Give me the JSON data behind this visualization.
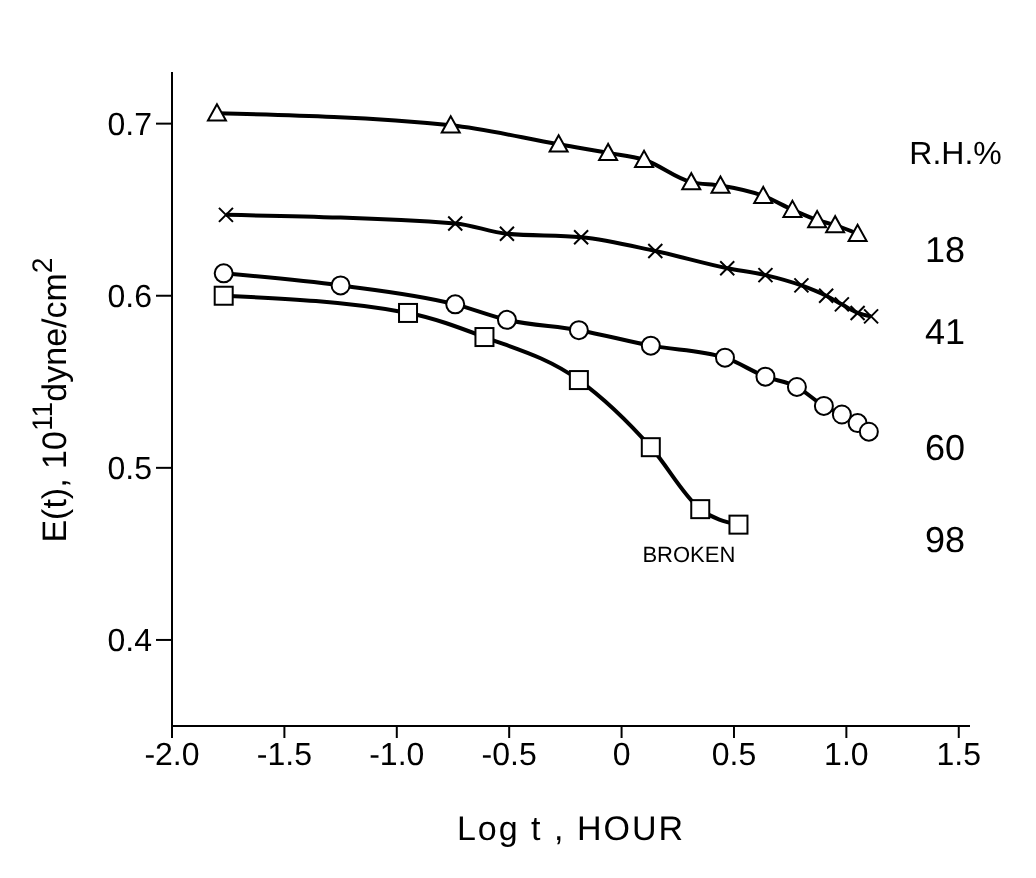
{
  "chart_data": {
    "type": "line",
    "xlabel": "Log t , HOUR",
    "ylabel": "E(t), 10$^{11}$dyne/cm$^{2}$",
    "legend_title": "R.H.%",
    "legend": "right",
    "xlim": [
      -2.0,
      1.55
    ],
    "xticks": [
      {
        "value": -2,
        "label": "-2.0"
      },
      {
        "value": -1.5,
        "label": "-1.5"
      },
      {
        "value": -1,
        "label": "-1.0"
      },
      {
        "value": -0.5,
        "label": "-0.5"
      },
      {
        "value": 0,
        "label": "0"
      },
      {
        "value": 0.5,
        "label": "0.5"
      },
      {
        "value": 1,
        "label": "1.0"
      },
      {
        "value": 1.5,
        "label": "1.5"
      }
    ],
    "ylim": [
      0.35,
      0.73
    ],
    "yticks": [
      0.4,
      0.5,
      0.6,
      0.7
    ],
    "series": [
      {
        "name": "18",
        "color": "#000000",
        "marker": "triangle",
        "x": [
          -1.8,
          -0.76,
          -0.28,
          -0.06,
          0.1,
          0.31,
          0.44,
          0.63,
          0.76,
          0.87,
          0.95,
          1.05
        ],
        "values": [
          0.706,
          0.699,
          0.688,
          0.683,
          0.679,
          0.666,
          0.664,
          0.658,
          0.65,
          0.644,
          0.641,
          0.636
        ]
      },
      {
        "name": "41",
        "color": "#000000",
        "marker": "cross",
        "x": [
          -1.76,
          -0.74,
          -0.51,
          -0.18,
          0.15,
          0.47,
          0.64,
          0.8,
          0.91,
          0.98,
          1.05,
          1.11
        ],
        "values": [
          0.647,
          0.642,
          0.636,
          0.634,
          0.626,
          0.616,
          0.612,
          0.606,
          0.6,
          0.595,
          0.59,
          0.588
        ]
      },
      {
        "name": "60",
        "color": "#000000",
        "marker": "circle",
        "x": [
          -1.77,
          -1.25,
          -0.74,
          -0.51,
          -0.19,
          0.13,
          0.46,
          0.64,
          0.78,
          0.9,
          0.98,
          1.05,
          1.1
        ],
        "values": [
          0.613,
          0.606,
          0.595,
          0.586,
          0.58,
          0.571,
          0.564,
          0.553,
          0.547,
          0.536,
          0.531,
          0.526,
          0.521
        ]
      },
      {
        "name": "98",
        "color": "#000000",
        "marker": "square",
        "x": [
          -1.77,
          -0.95,
          -0.61,
          -0.19,
          0.13,
          0.35,
          0.52
        ],
        "values": [
          0.6,
          0.59,
          0.576,
          0.551,
          0.512,
          0.476,
          0.467
        ]
      }
    ],
    "annotations": [
      {
        "text": "BROKEN",
        "x": 0.52,
        "y": 0.467
      }
    ]
  }
}
